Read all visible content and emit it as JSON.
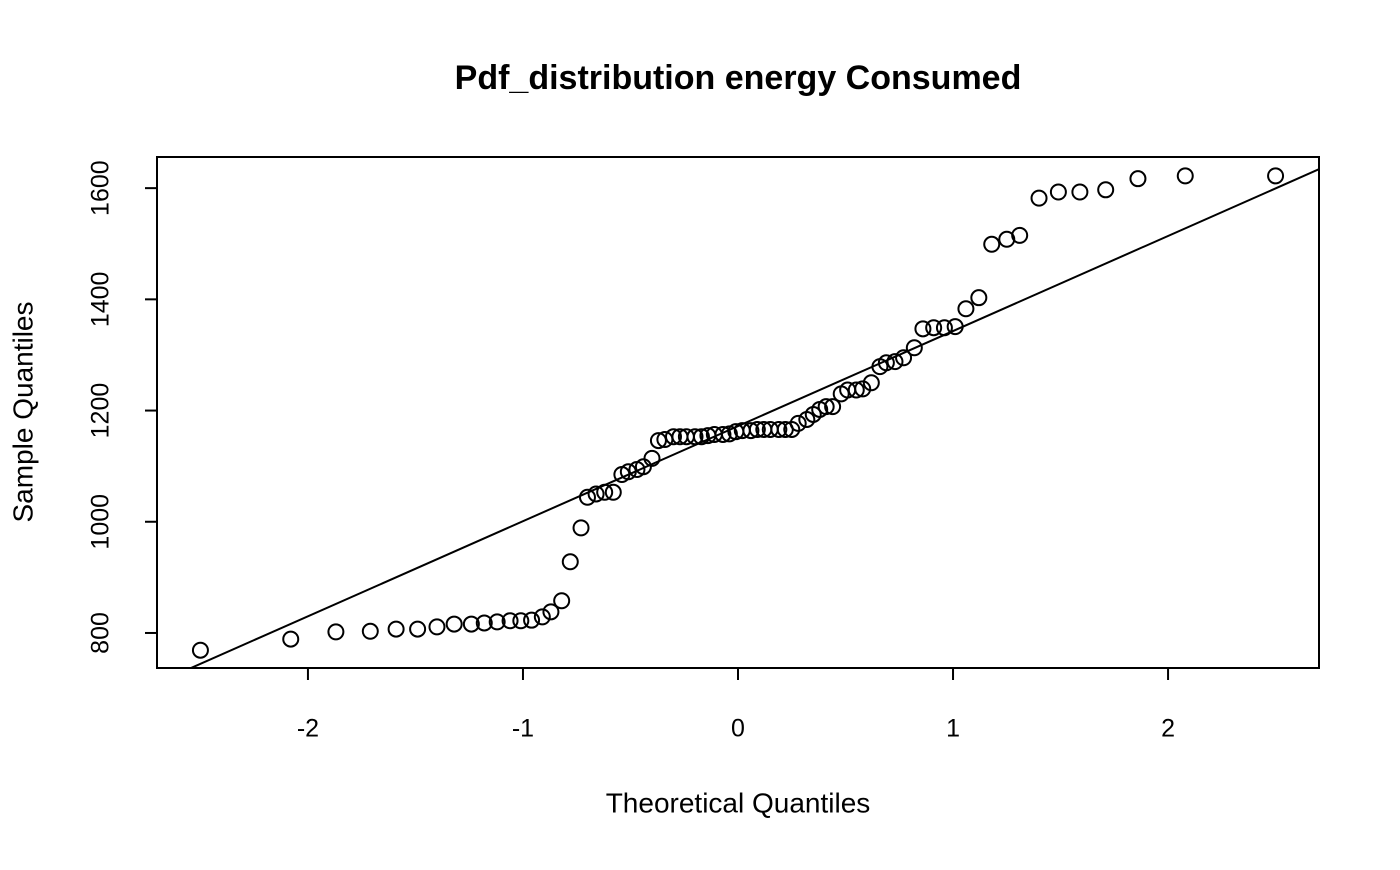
{
  "chart_data": {
    "type": "scatter",
    "title": "Pdf_distribution energy Consumed",
    "x_label": "Theoretical Quantiles",
    "y_label": "Sample Quantiles",
    "x": [
      -2.5,
      -2.08,
      -1.87,
      -1.71,
      -1.59,
      -1.49,
      -1.4,
      -1.32,
      -1.24,
      -1.18,
      -1.12,
      -1.06,
      -1.01,
      -0.96,
      -0.91,
      -0.87,
      -0.82,
      -0.78,
      -0.73,
      -0.7,
      -0.66,
      -0.62,
      -0.58,
      -0.54,
      -0.51,
      -0.47,
      -0.44,
      -0.4,
      -0.37,
      -0.34,
      -0.3,
      -0.27,
      -0.24,
      -0.2,
      -0.17,
      -0.14,
      -0.11,
      -0.07,
      -0.04,
      -0.01,
      0.02,
      0.06,
      0.09,
      0.12,
      0.15,
      0.19,
      0.22,
      0.25,
      0.28,
      0.32,
      0.35,
      0.38,
      0.41,
      0.44,
      0.48,
      0.51,
      0.55,
      0.58,
      0.62,
      0.66,
      0.69,
      0.73,
      0.77,
      0.82,
      0.86,
      0.91,
      0.96,
      1.01,
      1.06,
      1.12,
      1.18,
      1.25,
      1.31,
      1.4,
      1.49,
      1.59,
      1.71,
      1.86,
      2.08,
      2.5
    ],
    "values": [
      769,
      789,
      802,
      803,
      807,
      807,
      811,
      816,
      816,
      818,
      820,
      822,
      822,
      823,
      829,
      838,
      858,
      928,
      989,
      1044,
      1050,
      1053,
      1053,
      1085,
      1090,
      1094,
      1099,
      1114,
      1146,
      1148,
      1153,
      1153,
      1153,
      1153,
      1153,
      1155,
      1157,
      1157,
      1158,
      1162,
      1164,
      1164,
      1166,
      1166,
      1166,
      1166,
      1166,
      1166,
      1177,
      1184,
      1193,
      1202,
      1207,
      1207,
      1230,
      1237,
      1237,
      1239,
      1250,
      1279,
      1286,
      1288,
      1295,
      1313,
      1347,
      1349,
      1349,
      1351,
      1383,
      1403,
      1499,
      1508,
      1515,
      1582,
      1593,
      1593,
      1597,
      1617,
      1622,
      1622
    ],
    "color": "#000000",
    "reference_line": {
      "intercept": 1172,
      "slope": 171
    },
    "xlim": [
      -2.702,
      2.702
    ],
    "ylim": [
      737,
      1656
    ],
    "xticks": [
      -2,
      -1,
      0,
      1,
      2
    ],
    "yticks": [
      800,
      1000,
      1200,
      1400,
      1600
    ],
    "grid": false
  }
}
